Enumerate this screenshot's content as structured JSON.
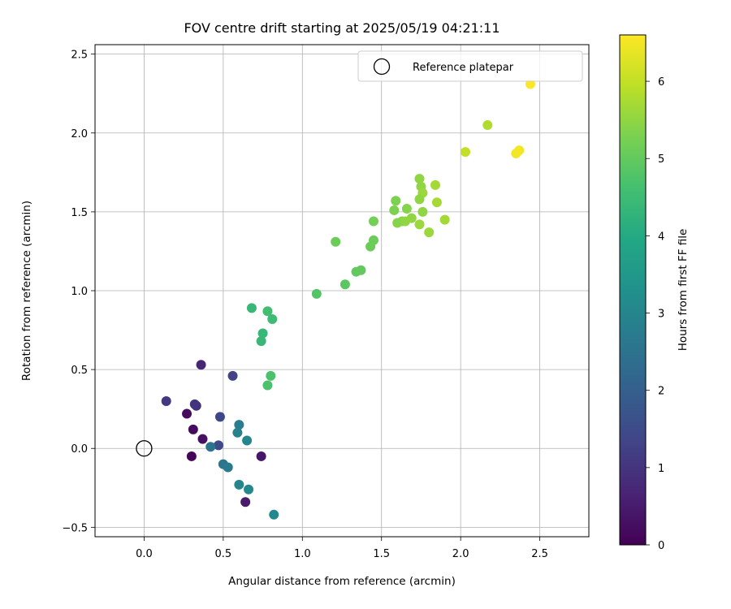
{
  "chart_data": {
    "type": "scatter",
    "title": "FOV centre drift starting at 2025/05/19 04:21:11",
    "xlabel": "Angular distance from reference (arcmin)",
    "ylabel": "Rotation from reference (arcmin)",
    "xlim": [
      -0.31,
      2.81
    ],
    "ylim": [
      -0.56,
      2.56
    ],
    "xticks": [
      "0.0",
      "0.5",
      "1.0",
      "1.5",
      "2.0",
      "2.5"
    ],
    "xtick_values": [
      0,
      0.5,
      1.0,
      1.5,
      2.0,
      2.5
    ],
    "yticks": [
      "−0.5",
      "0.0",
      "0.5",
      "1.0",
      "1.5",
      "2.0",
      "2.5"
    ],
    "ytick_values": [
      -0.5,
      0,
      0.5,
      1.0,
      1.5,
      2.0,
      2.5
    ],
    "grid": true,
    "legend": {
      "label": "Reference platepar",
      "placement": "top-right"
    },
    "reference_point": {
      "x": 0.0,
      "y": 0.0
    },
    "colorbar": {
      "label": "Hours from first FF file",
      "range": [
        0,
        6.6
      ],
      "ticks": [
        "0",
        "1",
        "2",
        "3",
        "4",
        "5",
        "6"
      ],
      "tick_values": [
        0,
        1,
        2,
        3,
        4,
        5,
        6
      ],
      "colormap": "viridis"
    },
    "points": [
      {
        "x": 0.3,
        "y": -0.05,
        "h": 0.1
      },
      {
        "x": 0.27,
        "y": 0.22,
        "h": 0.2
      },
      {
        "x": 0.31,
        "y": 0.12,
        "h": 0.2
      },
      {
        "x": 0.37,
        "y": 0.06,
        "h": 0.3
      },
      {
        "x": 0.74,
        "y": -0.05,
        "h": 0.4
      },
      {
        "x": 0.64,
        "y": -0.34,
        "h": 0.5
      },
      {
        "x": 0.36,
        "y": 0.53,
        "h": 0.7
      },
      {
        "x": 0.33,
        "y": 0.27,
        "h": 0.9
      },
      {
        "x": 0.32,
        "y": 0.28,
        "h": 1.0
      },
      {
        "x": 0.14,
        "y": 0.3,
        "h": 1.1
      },
      {
        "x": 0.56,
        "y": 0.46,
        "h": 1.3
      },
      {
        "x": 0.48,
        "y": 0.2,
        "h": 1.4
      },
      {
        "x": 0.47,
        "y": 0.02,
        "h": 1.5
      },
      {
        "x": 0.42,
        "y": 0.01,
        "h": 2.5
      },
      {
        "x": 0.5,
        "y": -0.1,
        "h": 2.6
      },
      {
        "x": 0.53,
        "y": -0.12,
        "h": 2.7
      },
      {
        "x": 0.6,
        "y": 0.15,
        "h": 2.8
      },
      {
        "x": 0.59,
        "y": 0.1,
        "h": 2.9
      },
      {
        "x": 0.65,
        "y": 0.05,
        "h": 3.0
      },
      {
        "x": 0.6,
        "y": -0.23,
        "h": 3.0
      },
      {
        "x": 0.66,
        "y": -0.26,
        "h": 3.1
      },
      {
        "x": 0.82,
        "y": -0.42,
        "h": 3.1
      },
      {
        "x": 0.68,
        "y": 0.89,
        "h": 4.4
      },
      {
        "x": 0.75,
        "y": 0.73,
        "h": 4.4
      },
      {
        "x": 0.74,
        "y": 0.68,
        "h": 4.4
      },
      {
        "x": 0.78,
        "y": 0.87,
        "h": 4.6
      },
      {
        "x": 0.81,
        "y": 0.82,
        "h": 4.5
      },
      {
        "x": 0.8,
        "y": 0.46,
        "h": 4.7
      },
      {
        "x": 0.78,
        "y": 0.4,
        "h": 4.7
      },
      {
        "x": 1.09,
        "y": 0.98,
        "h": 4.8
      },
      {
        "x": 1.27,
        "y": 1.04,
        "h": 4.9
      },
      {
        "x": 1.34,
        "y": 1.12,
        "h": 5.0
      },
      {
        "x": 1.37,
        "y": 1.13,
        "h": 5.0
      },
      {
        "x": 1.21,
        "y": 1.31,
        "h": 5.1
      },
      {
        "x": 1.45,
        "y": 1.32,
        "h": 5.1
      },
      {
        "x": 1.43,
        "y": 1.28,
        "h": 5.1
      },
      {
        "x": 1.45,
        "y": 1.44,
        "h": 5.2
      },
      {
        "x": 1.58,
        "y": 1.51,
        "h": 5.3
      },
      {
        "x": 1.59,
        "y": 1.57,
        "h": 5.3
      },
      {
        "x": 1.6,
        "y": 1.43,
        "h": 5.4
      },
      {
        "x": 1.63,
        "y": 1.44,
        "h": 5.4
      },
      {
        "x": 1.65,
        "y": 1.44,
        "h": 5.5
      },
      {
        "x": 1.66,
        "y": 1.52,
        "h": 5.4
      },
      {
        "x": 1.69,
        "y": 1.46,
        "h": 5.5
      },
      {
        "x": 1.74,
        "y": 1.42,
        "h": 5.6
      },
      {
        "x": 1.74,
        "y": 1.71,
        "h": 5.5
      },
      {
        "x": 1.75,
        "y": 1.66,
        "h": 5.5
      },
      {
        "x": 1.76,
        "y": 1.62,
        "h": 5.6
      },
      {
        "x": 1.74,
        "y": 1.58,
        "h": 5.5
      },
      {
        "x": 1.76,
        "y": 1.5,
        "h": 5.5
      },
      {
        "x": 1.8,
        "y": 1.37,
        "h": 5.6
      },
      {
        "x": 1.84,
        "y": 1.67,
        "h": 5.7
      },
      {
        "x": 1.85,
        "y": 1.56,
        "h": 5.7
      },
      {
        "x": 1.9,
        "y": 1.45,
        "h": 5.7
      },
      {
        "x": 2.03,
        "y": 1.88,
        "h": 6.0
      },
      {
        "x": 2.17,
        "y": 2.05,
        "h": 5.8
      },
      {
        "x": 2.35,
        "y": 1.87,
        "h": 6.5
      },
      {
        "x": 2.37,
        "y": 1.89,
        "h": 6.5
      },
      {
        "x": 2.44,
        "y": 2.31,
        "h": 6.6
      }
    ]
  }
}
